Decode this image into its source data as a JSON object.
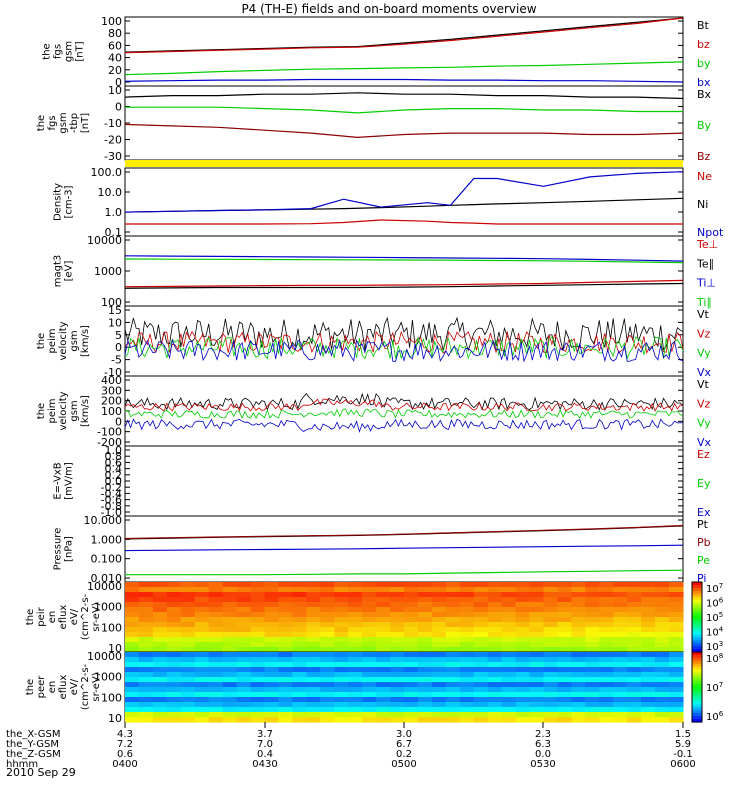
{
  "title": "P4 (TH-E) fields and on-board moments overview",
  "date": "2010 Sep 29",
  "colors": {
    "black": "#000000",
    "red": "#cc0000",
    "darkred": "#8b0000",
    "green": "#00cc00",
    "blue": "#0000cc",
    "yellow": "#ffee00"
  },
  "chart_data": [
    {
      "type": "line",
      "panel": "fgs_gsm_mag",
      "ylabel": [
        "the",
        "fgs",
        "gsm",
        "[nT]"
      ],
      "yticks": [
        "100",
        "80",
        "60",
        "40",
        "20",
        "0"
      ],
      "ylim": [
        -5,
        105
      ],
      "x": [
        0,
        10,
        20,
        30,
        40,
        50,
        60,
        70,
        80,
        90,
        100,
        110,
        120
      ],
      "series": [
        {
          "name": "Bt",
          "color": "#000000",
          "values": [
            49,
            51,
            53,
            55,
            57,
            58,
            64,
            70,
            77,
            84,
            91,
            98,
            108
          ]
        },
        {
          "name": "bz",
          "color": "#cc0000",
          "values": [
            48,
            50,
            52,
            54,
            56,
            57,
            62,
            68,
            75,
            82,
            89,
            96,
            106
          ]
        },
        {
          "name": "by",
          "color": "#00cc00",
          "values": [
            12,
            14,
            17,
            19,
            21,
            22,
            23,
            24,
            26,
            27,
            29,
            31,
            33
          ]
        },
        {
          "name": "bx",
          "color": "#0000cc",
          "values": [
            1,
            2,
            3,
            3,
            4,
            4,
            4,
            3,
            3,
            2,
            2,
            1,
            0
          ]
        }
      ],
      "legend": [
        "Bt",
        "bz",
        "by",
        "bx"
      ]
    },
    {
      "type": "line",
      "panel": "fgs_gsm_components",
      "ylabel": [
        "the",
        "fgs",
        "gsm",
        "-tbp",
        "[nT]"
      ],
      "yticks": [
        "10",
        "0",
        "-10",
        "-20",
        "-30"
      ],
      "ylim": [
        -36,
        14
      ],
      "x": [
        0,
        10,
        20,
        30,
        40,
        50,
        60,
        70,
        80,
        90,
        100,
        110,
        120
      ],
      "series": [
        {
          "name": "Bx",
          "color": "#000000",
          "values": [
            7,
            8,
            8,
            9,
            9,
            10,
            9,
            9,
            8,
            8,
            7,
            7,
            6
          ]
        },
        {
          "name": "By",
          "color": "#00cc00",
          "values": [
            0,
            0,
            0,
            -1,
            -2,
            -4,
            -2,
            -1,
            -1,
            -2,
            -2,
            -3,
            -3
          ]
        },
        {
          "name": "Bz",
          "color": "#8b0000",
          "values": [
            -12,
            -13,
            -14,
            -16,
            -18,
            -21,
            -19,
            -18,
            -18,
            -18,
            -19,
            -19,
            -18
          ]
        }
      ],
      "legend": [
        "Bx",
        "By",
        "Bz"
      ]
    },
    {
      "type": "line",
      "panel": "density",
      "ylabel": [
        "Density",
        "[cm-3]"
      ],
      "yticks": [
        "100.0",
        "10.0",
        "1.0",
        "0.1"
      ],
      "yscale": "log",
      "ylim": [
        0.07,
        150
      ],
      "x": [
        0,
        10,
        20,
        30,
        40,
        47,
        55,
        65,
        70,
        75,
        80,
        90,
        100,
        110,
        120
      ],
      "series": [
        {
          "name": "Ne",
          "color": "#cc0000",
          "values": [
            0.25,
            0.25,
            0.25,
            0.25,
            0.26,
            0.3,
            0.4,
            0.35,
            0.3,
            0.28,
            0.25,
            0.25,
            0.25,
            0.25,
            0.25
          ]
        },
        {
          "name": "Ni",
          "color": "#000000",
          "values": [
            1,
            1.1,
            1.2,
            1.3,
            1.4,
            1.5,
            1.7,
            2,
            2.2,
            2.4,
            2.6,
            3,
            3.5,
            4.2,
            5
          ]
        },
        {
          "name": "Npot",
          "color": "#0000cc",
          "values": [
            1,
            1.1,
            1.2,
            1.3,
            1.5,
            4.5,
            1.8,
            3,
            2.2,
            50,
            50,
            20,
            60,
            90,
            110
          ]
        }
      ],
      "legend": [
        "Ne",
        "Ni",
        "Npot"
      ]
    },
    {
      "type": "line",
      "panel": "temperature",
      "ylabel": [
        "magt3",
        "[eV]"
      ],
      "yticks": [
        "10000",
        "1000",
        "100"
      ],
      "yscale": "log",
      "ylim": [
        35,
        10000
      ],
      "x": [
        0,
        10,
        20,
        30,
        40,
        50,
        60,
        70,
        80,
        90,
        100,
        110,
        120
      ],
      "series": [
        {
          "name": "Te⊥",
          "color": "#cc0000",
          "values": [
            160,
            165,
            170,
            175,
            180,
            180,
            185,
            190,
            200,
            210,
            230,
            250,
            270
          ]
        },
        {
          "name": "Te∥",
          "color": "#000000",
          "values": [
            140,
            145,
            150,
            150,
            150,
            150,
            155,
            160,
            170,
            180,
            190,
            200,
            210
          ]
        },
        {
          "name": "Ti⊥",
          "color": "#0000cc",
          "values": [
            2100,
            2050,
            2000,
            1950,
            1900,
            1850,
            1800,
            1750,
            1700,
            1650,
            1550,
            1450,
            1350
          ]
        },
        {
          "name": "Ti∥",
          "color": "#00cc00",
          "values": [
            1600,
            1580,
            1560,
            1540,
            1520,
            1500,
            1480,
            1450,
            1420,
            1380,
            1320,
            1250,
            1180
          ]
        }
      ],
      "legend": [
        "Te⊥",
        "Te∥",
        "Ti⊥",
        "Ti∥"
      ]
    },
    {
      "type": "line",
      "panel": "peim_velocity_small",
      "ylabel": [
        "the",
        "peim",
        "velocity",
        "gsm",
        "[km/s]"
      ],
      "yticks": [
        "15",
        "10",
        "5",
        "0",
        "-5",
        "-10"
      ],
      "ylim": [
        -10,
        15
      ],
      "series": [
        {
          "name": "Vt",
          "color": "#000000",
          "mean": 5,
          "noise": 6
        },
        {
          "name": "Vz",
          "color": "#cc0000",
          "mean": 2,
          "noise": 4
        },
        {
          "name": "Vy",
          "color": "#00cc00",
          "mean": 0,
          "noise": 4
        },
        {
          "name": "Vx",
          "color": "#0000cc",
          "mean": -1,
          "noise": 4
        }
      ],
      "legend": [
        "Vt",
        "Vz",
        "Vy",
        "Vx"
      ]
    },
    {
      "type": "line",
      "panel": "peim_velocity_large",
      "ylabel": [
        "the",
        "peim",
        "velocity",
        "gsm",
        "[km/s]"
      ],
      "yticks": [
        "400",
        "300",
        "200",
        "100",
        "0",
        "-100",
        "-200"
      ],
      "ylim": [
        -260,
        400
      ],
      "series": [
        {
          "name": "Vt",
          "color": "#000000",
          "mean": 140,
          "noise": 60
        },
        {
          "name": "Vz",
          "color": "#cc0000",
          "mean": 110,
          "noise": 40
        },
        {
          "name": "Vy",
          "color": "#00cc00",
          "mean": 40,
          "noise": 40
        },
        {
          "name": "Vx",
          "color": "#0000cc",
          "mean": -60,
          "noise": 50
        }
      ],
      "legend": [
        "Vt",
        "Vz",
        "Vy",
        "Vx"
      ]
    },
    {
      "type": "line",
      "panel": "efield",
      "ylabel": [
        "E=-VxB",
        "[mV/m]"
      ],
      "yticks": [
        "1.0",
        "0.8",
        "0.6",
        "0.4",
        "0.2",
        "0.0",
        "-0.2",
        "-0.4",
        "-0.6",
        "-0.8",
        "-1.0"
      ],
      "ylim": [
        -1,
        1
      ],
      "series": [],
      "legend": [
        "Ez",
        "Ey",
        "Ex"
      ]
    },
    {
      "type": "line",
      "panel": "pressure",
      "ylabel": [
        "Pressure",
        "[nPa]"
      ],
      "yticks": [
        "10.000",
        "1.000",
        "0.100",
        "0.010"
      ],
      "yscale": "log",
      "ylim": [
        0.004,
        15
      ],
      "x": [
        0,
        10,
        20,
        30,
        40,
        50,
        60,
        70,
        80,
        90,
        100,
        110,
        120
      ],
      "series": [
        {
          "name": "Pt",
          "color": "#000000",
          "values": [
            0.9,
            1,
            1.1,
            1.2,
            1.3,
            1.4,
            1.6,
            1.9,
            2.2,
            2.6,
            3.1,
            3.8,
            4.8
          ]
        },
        {
          "name": "Pb",
          "color": "#8b0000",
          "values": [
            0.95,
            1.05,
            1.15,
            1.25,
            1.35,
            1.45,
            1.65,
            1.95,
            2.3,
            2.7,
            3.2,
            3.9,
            5
          ]
        },
        {
          "name": "Pe",
          "color": "#00cc00",
          "values": [
            0.009,
            0.009,
            0.009,
            0.009,
            0.0095,
            0.01,
            0.01,
            0.011,
            0.012,
            0.013,
            0.014,
            0.015,
            0.016
          ]
        },
        {
          "name": "Pi",
          "color": "#0000cc",
          "values": [
            0.2,
            0.21,
            0.22,
            0.23,
            0.24,
            0.25,
            0.27,
            0.29,
            0.31,
            0.33,
            0.35,
            0.37,
            0.4
          ]
        }
      ],
      "legend": [
        "Pt",
        "Pb",
        "Pe",
        "Pi"
      ]
    },
    {
      "type": "heatmap",
      "panel": "peir_eflux",
      "ylabel": [
        "the",
        "peir",
        "en",
        "eflux",
        "eV/",
        "(cm^2-s-",
        "sr-eV)"
      ],
      "yticks": [
        "10000",
        "1000",
        "100",
        "10"
      ],
      "colorbar_ticks": [
        "10^7",
        "10^6",
        "10^5",
        "10^4",
        "10^3"
      ]
    },
    {
      "type": "heatmap",
      "panel": "peer_eflux",
      "ylabel": [
        "the",
        "peer",
        "en",
        "eflux",
        "eV/",
        "(cm^2-s-",
        "sr-eV)"
      ],
      "yticks": [
        "10000",
        "1000",
        "100",
        "10"
      ],
      "colorbar_ticks": [
        "10^8",
        "10^7",
        "10^6"
      ]
    }
  ],
  "x_axis": {
    "rows": [
      {
        "label": "the_X-GSM",
        "values": [
          "4.3",
          "3.7",
          "3.0",
          "2.3",
          "1.5"
        ]
      },
      {
        "label": "the_Y-GSM",
        "values": [
          "7.2",
          "7.0",
          "6.7",
          "6.3",
          "5.9"
        ]
      },
      {
        "label": "the_Z-GSM",
        "values": [
          "0.6",
          "0.4",
          "0.2",
          "0.0",
          "-0.1"
        ]
      },
      {
        "label": "hhmm",
        "values": [
          "0400",
          "0430",
          "0500",
          "0530",
          "0600"
        ]
      }
    ]
  }
}
